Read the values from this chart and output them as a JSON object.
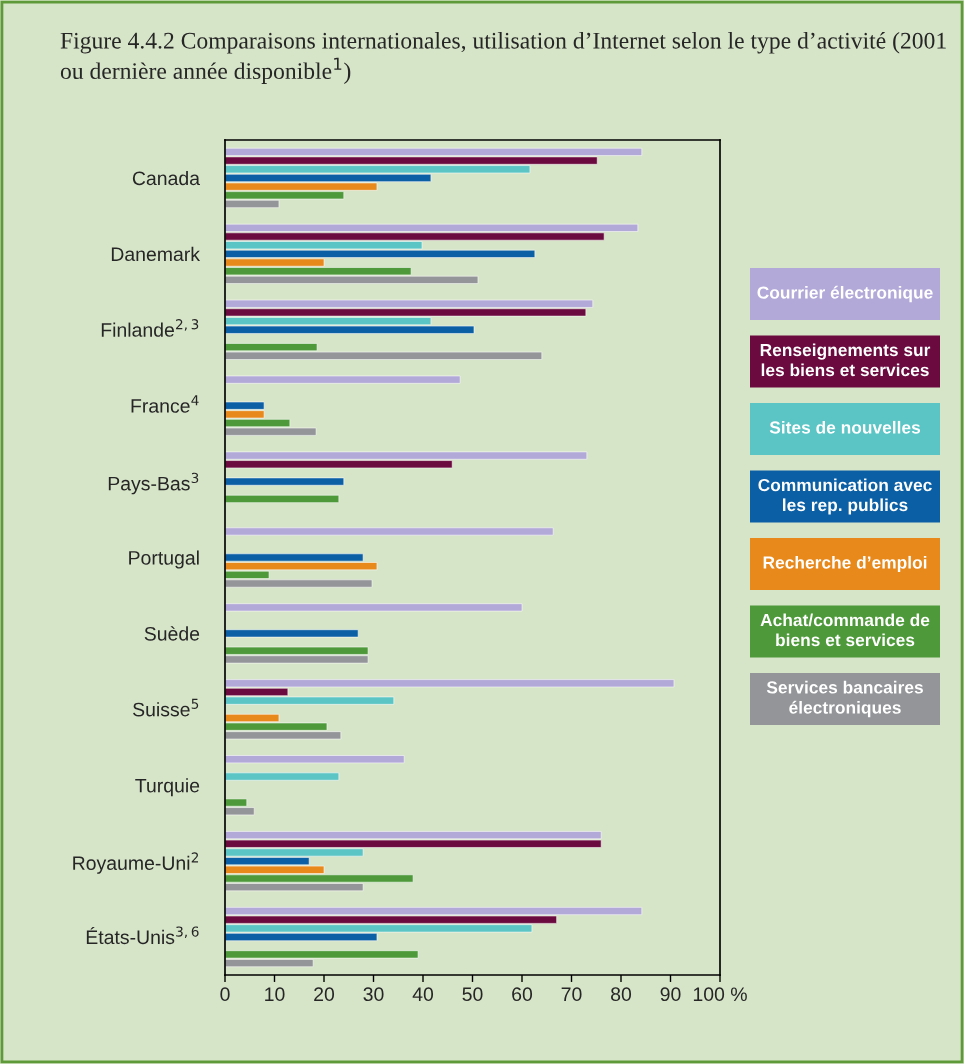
{
  "chart_data": {
    "type": "bar",
    "orientation": "horizontal",
    "title": "Figure 4.4.2 Comparaisons internationales, utilisation d’Internet selon le type d’activité (2001 ou dernière année disponible$^{1}$)",
    "categories": [
      "Canada",
      "Danemark",
      "Finlande$^{2,3}$",
      "France$^{4}$",
      "Pays-Bas$^{3}$",
      "Portugal",
      "Suède",
      "Suisse$^{5}$",
      "Turquie",
      "Royaume-Uni$^{2}$",
      "États-Unis$^{3,6}$"
    ],
    "series": [
      {
        "name": "Courrier électronique",
        "color": "#b3a9d8",
        "values": [
          84.2,
          83.4,
          74.3,
          47.5,
          73.1,
          66.3,
          60,
          90.7,
          36.2,
          76,
          84.2
        ]
      },
      {
        "name": "Renseignements sur les biens et services",
        "color": "#6b0a3f",
        "values": [
          75.2,
          76.6,
          72.9,
          null,
          45.9,
          null,
          null,
          12.7,
          null,
          76,
          67
        ]
      },
      {
        "name": "Sites de nouvelles",
        "color": "#5bc4c4",
        "values": [
          61.6,
          39.8,
          41.6,
          null,
          null,
          null,
          null,
          34.1,
          23,
          27.9,
          62
        ]
      },
      {
        "name": "Communication avec les rep. publics",
        "color": "#0b5fa5",
        "values": [
          41.6,
          62.6,
          50.3,
          7.9,
          24,
          27.9,
          26.9,
          null,
          null,
          17,
          30.7
        ]
      },
      {
        "name": "Recherche d’emploi",
        "color": "#e8891c",
        "values": [
          30.7,
          20,
          null,
          7.9,
          null,
          30.7,
          null,
          10.9,
          null,
          20,
          null
        ]
      },
      {
        "name": "Achat/commande de biens et services",
        "color": "#4e9a3a",
        "values": [
          24,
          37.6,
          18.6,
          13.1,
          23,
          8.9,
          28.9,
          20.6,
          4.4,
          38,
          39
        ]
      },
      {
        "name": "Services bancaires électroniques",
        "color": "#939598",
        "values": [
          10.9,
          51.1,
          64,
          18.4,
          null,
          29.7,
          28.9,
          23.4,
          5.9,
          27.9,
          17.8
        ]
      }
    ],
    "xlim": [
      0,
      100
    ],
    "xticks": [
      0,
      10,
      20,
      30,
      40,
      50,
      60,
      70,
      80,
      90,
      {
        "value": 100,
        "label": "100 %"
      }
    ],
    "grid": false,
    "legend": "right"
  }
}
